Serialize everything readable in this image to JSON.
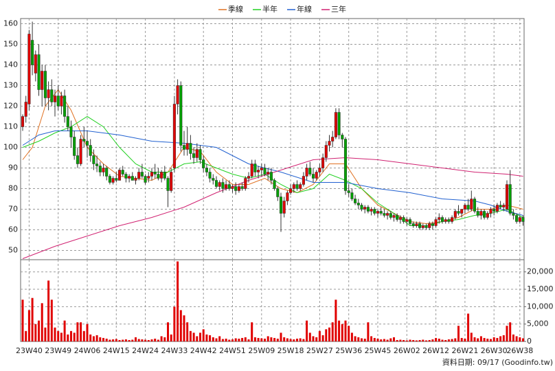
{
  "chart_data": {
    "type": "candlestick",
    "categories": [
      null,
      null,
      "23W40",
      null,
      null,
      null,
      null,
      null,
      null,
      null,
      null,
      "23W49",
      null,
      null,
      null,
      null,
      null,
      null,
      null,
      null,
      "24W06",
      null,
      null,
      null,
      null,
      null,
      null,
      null,
      null,
      "24W15",
      null,
      null,
      null,
      null,
      null,
      null,
      null,
      null,
      "24W24",
      null,
      null,
      null,
      null,
      null,
      null,
      null,
      null,
      "24W33",
      null,
      null,
      null,
      null,
      null,
      null,
      null,
      null,
      "24W42",
      null,
      null,
      null,
      null,
      null,
      null,
      null,
      null,
      "24W51",
      null,
      null,
      null,
      null,
      null,
      null,
      null,
      null,
      "25W09",
      null,
      null,
      null,
      null,
      null,
      null,
      null,
      null,
      "25W18",
      null,
      null,
      null,
      null,
      null,
      null,
      null,
      null,
      "25W27",
      null,
      null,
      null,
      null,
      null,
      null,
      null,
      null,
      "25W36",
      null,
      null,
      null,
      null,
      null,
      null,
      null,
      null,
      "25W45",
      null,
      null,
      null,
      null,
      null,
      null,
      null,
      null,
      "26W02",
      null,
      null,
      null,
      null,
      null,
      null,
      null,
      null,
      "26W12",
      null,
      null,
      null,
      null,
      null,
      null,
      null,
      null,
      "26W21",
      null,
      null,
      null,
      null,
      null,
      null,
      null,
      null,
      "26W30",
      null,
      null,
      null,
      null,
      null,
      null,
      null,
      "26W38",
      null
    ],
    "ohlc": [
      [
        110,
        116,
        108,
        115
      ],
      [
        115,
        125,
        112,
        122
      ],
      [
        121,
        157,
        118,
        155
      ],
      [
        152,
        161,
        135,
        140
      ],
      [
        136,
        147,
        132,
        145
      ],
      [
        145,
        150,
        125,
        128
      ],
      [
        128,
        140,
        120,
        137
      ],
      [
        137,
        140,
        120,
        124
      ],
      [
        124,
        132,
        118,
        128
      ],
      [
        128,
        133,
        120,
        122
      ],
      [
        122,
        128,
        115,
        125
      ],
      [
        125,
        130,
        118,
        120
      ],
      [
        120,
        127,
        116,
        125
      ],
      [
        125,
        128,
        112,
        115
      ],
      [
        115,
        120,
        108,
        110
      ],
      [
        110,
        113,
        100,
        105
      ],
      [
        105,
        108,
        94,
        96
      ],
      [
        96,
        100,
        90,
        92
      ],
      [
        92,
        106,
        91,
        104
      ],
      [
        104,
        110,
        100,
        103
      ],
      [
        103,
        108,
        95,
        101
      ],
      [
        101,
        104,
        93,
        96
      ],
      [
        96,
        99,
        89,
        92
      ],
      [
        92,
        96,
        88,
        91
      ],
      [
        91,
        93,
        86,
        88
      ],
      [
        88,
        92,
        86,
        90
      ],
      [
        90,
        91,
        84,
        86
      ],
      [
        86,
        87,
        82,
        83
      ],
      [
        83,
        86,
        82,
        85
      ],
      [
        85,
        88,
        83,
        84
      ],
      [
        84,
        90,
        84,
        89
      ],
      [
        89,
        91,
        86,
        87
      ],
      [
        87,
        88,
        83,
        85
      ],
      [
        85,
        87,
        83,
        86
      ],
      [
        86,
        88,
        84,
        84
      ],
      [
        84,
        86,
        82,
        85
      ],
      [
        85,
        90,
        84,
        88
      ],
      [
        88,
        92,
        85,
        86
      ],
      [
        86,
        87,
        82,
        83
      ],
      [
        85,
        88,
        83,
        86
      ],
      [
        86,
        90,
        84,
        88
      ],
      [
        88,
        92,
        85,
        87
      ],
      [
        87,
        90,
        84,
        85
      ],
      [
        85,
        89,
        83,
        88
      ],
      [
        88,
        91,
        84,
        85
      ],
      [
        85,
        86,
        71,
        79
      ],
      [
        79,
        90,
        78,
        88
      ],
      [
        90,
        125,
        88,
        121
      ],
      [
        121,
        133,
        116,
        130
      ],
      [
        130,
        132,
        98,
        101
      ],
      [
        101,
        108,
        96,
        99
      ],
      [
        99,
        110,
        96,
        102
      ],
      [
        102,
        106,
        94,
        97
      ],
      [
        97,
        100,
        92,
        95
      ],
      [
        95,
        102,
        93,
        99
      ],
      [
        99,
        101,
        92,
        94
      ],
      [
        94,
        96,
        88,
        90
      ],
      [
        90,
        92,
        86,
        88
      ],
      [
        88,
        90,
        83,
        85
      ],
      [
        85,
        87,
        82,
        84
      ],
      [
        84,
        86,
        80,
        81
      ],
      [
        81,
        84,
        79,
        83
      ],
      [
        83,
        85,
        78,
        80
      ],
      [
        80,
        84,
        79,
        82
      ],
      [
        82,
        84,
        79,
        80
      ],
      [
        80,
        82,
        78,
        81
      ],
      [
        81,
        83,
        77,
        79
      ],
      [
        79,
        82,
        78,
        81
      ],
      [
        81,
        83,
        79,
        80
      ],
      [
        80,
        86,
        79,
        85
      ],
      [
        85,
        88,
        83,
        86
      ],
      [
        86,
        94,
        85,
        92
      ],
      [
        92,
        94,
        86,
        88
      ],
      [
        88,
        91,
        85,
        89
      ],
      [
        89,
        92,
        86,
        90
      ],
      [
        90,
        92,
        86,
        87
      ],
      [
        87,
        90,
        84,
        88
      ],
      [
        88,
        90,
        82,
        84
      ],
      [
        84,
        85,
        79,
        80
      ],
      [
        80,
        81,
        74,
        76
      ],
      [
        76,
        78,
        59,
        68
      ],
      [
        68,
        76,
        66,
        74
      ],
      [
        74,
        79,
        72,
        78
      ],
      [
        78,
        82,
        77,
        80
      ],
      [
        80,
        83,
        78,
        82
      ],
      [
        82,
        84,
        79,
        80
      ],
      [
        80,
        83,
        79,
        82
      ],
      [
        82,
        88,
        81,
        86
      ],
      [
        86,
        92,
        84,
        90
      ],
      [
        90,
        93,
        86,
        87
      ],
      [
        87,
        90,
        83,
        85
      ],
      [
        85,
        89,
        84,
        88
      ],
      [
        88,
        92,
        86,
        90
      ],
      [
        90,
        97,
        88,
        95
      ],
      [
        95,
        103,
        93,
        101
      ],
      [
        101,
        106,
        98,
        103
      ],
      [
        103,
        108,
        100,
        105
      ],
      [
        105,
        119,
        104,
        117
      ],
      [
        117,
        119,
        104,
        106
      ],
      [
        106,
        107,
        100,
        104
      ],
      [
        104,
        105,
        77,
        79
      ],
      [
        79,
        82,
        76,
        78
      ],
      [
        78,
        80,
        74,
        75
      ],
      [
        75,
        77,
        72,
        73
      ],
      [
        73,
        75,
        70,
        72
      ],
      [
        72,
        73,
        69,
        70
      ],
      [
        70,
        72,
        68,
        71
      ],
      [
        71,
        72,
        68,
        69
      ],
      [
        69,
        71,
        67,
        70
      ],
      [
        70,
        71,
        67,
        68
      ],
      [
        68,
        70,
        66,
        69
      ],
      [
        69,
        71,
        67,
        68
      ],
      [
        68,
        70,
        66,
        67
      ],
      [
        67,
        69,
        65,
        68
      ],
      [
        68,
        69,
        65,
        66
      ],
      [
        66,
        68,
        64,
        67
      ],
      [
        67,
        68,
        64,
        65
      ],
      [
        65,
        67,
        63,
        66
      ],
      [
        66,
        67,
        63,
        64
      ],
      [
        64,
        66,
        62,
        65
      ],
      [
        65,
        66,
        62,
        63
      ],
      [
        63,
        64,
        61,
        62
      ],
      [
        62,
        64,
        61,
        63
      ],
      [
        63,
        64,
        60,
        61
      ],
      [
        61,
        63,
        60,
        62
      ],
      [
        62,
        63,
        60,
        61
      ],
      [
        61,
        64,
        60,
        63
      ],
      [
        63,
        64,
        60,
        62
      ],
      [
        62,
        66,
        61,
        65
      ],
      [
        65,
        68,
        63,
        66
      ],
      [
        66,
        67,
        63,
        64
      ],
      [
        64,
        66,
        63,
        65
      ],
      [
        65,
        66,
        63,
        64
      ],
      [
        64,
        67,
        63,
        66
      ],
      [
        66,
        70,
        65,
        69
      ],
      [
        69,
        72,
        67,
        68
      ],
      [
        68,
        70,
        66,
        70
      ],
      [
        70,
        73,
        68,
        72
      ],
      [
        72,
        75,
        69,
        70
      ],
      [
        70,
        79,
        69,
        75
      ],
      [
        75,
        76,
        68,
        69
      ],
      [
        69,
        71,
        66,
        67
      ],
      [
        67,
        70,
        65,
        69
      ],
      [
        69,
        70,
        65,
        66
      ],
      [
        66,
        69,
        65,
        68
      ],
      [
        68,
        71,
        66,
        70
      ],
      [
        70,
        72,
        67,
        69
      ],
      [
        69,
        73,
        68,
        72
      ],
      [
        72,
        74,
        70,
        71
      ],
      [
        71,
        73,
        69,
        72
      ],
      [
        70,
        84,
        69,
        82
      ],
      [
        82,
        89,
        67,
        68
      ],
      [
        68,
        70,
        65,
        67
      ],
      [
        67,
        68,
        63,
        64
      ],
      [
        64,
        67,
        63,
        66
      ],
      [
        66,
        67,
        62,
        64
      ]
    ],
    "up_color": "#e00000",
    "down_color": "#00a000",
    "ylim": [
      45.5,
      162.5
    ],
    "yticks": [
      50,
      60,
      70,
      80,
      90,
      100,
      110,
      120,
      130,
      140,
      150,
      160
    ],
    "grid": true,
    "series": [
      {
        "name": "季線",
        "color": "#e07020",
        "x": [
          0,
          3,
          7,
          11,
          15,
          20,
          25,
          30,
          35,
          40,
          45,
          50,
          55,
          60,
          65,
          70,
          75,
          80,
          85,
          90,
          95,
          100,
          105,
          110,
          115,
          120,
          125,
          130,
          135,
          140,
          145,
          150,
          155
        ],
        "values": [
          94,
          100,
          120,
          128,
          118,
          100,
          92,
          86,
          85,
          84,
          88,
          100,
          98,
          88,
          82,
          82,
          85,
          80,
          78,
          82,
          92,
          92,
          80,
          72,
          68,
          64,
          63,
          64,
          66,
          70,
          70,
          72,
          70
        ]
      },
      {
        "name": "半年",
        "color": "#20d020",
        "x": [
          0,
          5,
          10,
          15,
          20,
          25,
          30,
          35,
          40,
          45,
          50,
          55,
          60,
          65,
          70,
          75,
          80,
          85,
          90,
          95,
          100,
          105,
          110,
          115,
          120,
          125,
          130,
          135,
          140,
          145,
          150,
          155
        ],
        "values": [
          100,
          103,
          107,
          110,
          115,
          110,
          100,
          92,
          88,
          88,
          92,
          93,
          90,
          87,
          85,
          87,
          82,
          78,
          80,
          87,
          84,
          80,
          73,
          68,
          62,
          62,
          64,
          65,
          67,
          68,
          70,
          66
        ]
      },
      {
        "name": "年線",
        "color": "#2060d0",
        "x": [
          0,
          5,
          10,
          20,
          30,
          40,
          50,
          60,
          70,
          80,
          90,
          100,
          110,
          120,
          130,
          140,
          145,
          150,
          155
        ],
        "values": [
          101,
          106,
          108,
          108,
          106,
          103,
          102,
          100,
          92,
          88,
          83,
          83,
          80,
          78,
          75,
          74,
          72,
          69,
          67
        ]
      },
      {
        "name": "三年",
        "color": "#d02070",
        "x": [
          0,
          10,
          20,
          30,
          40,
          50,
          60,
          70,
          80,
          90,
          100,
          110,
          120,
          130,
          140,
          150,
          155
        ],
        "values": [
          46,
          52,
          57,
          62,
          66,
          71,
          78,
          84,
          89,
          94,
          95,
          94,
          92,
          90,
          88,
          87,
          86
        ]
      }
    ],
    "volume": {
      "color": "#e00000",
      "ylim": [
        0,
        23500
      ],
      "yticks": [
        0,
        {
          "value": 5000,
          "label": "5,000"
        },
        {
          "value": 10000,
          "label": "10,000"
        },
        {
          "value": 15000,
          "label": "15,000"
        },
        {
          "value": 20000,
          "label": "20,000"
        }
      ],
      "values": [
        12000,
        3000,
        9000,
        12500,
        5000,
        6000,
        11000,
        4000,
        17500,
        12000,
        4000,
        3000,
        2500,
        6000,
        2000,
        3000,
        2500,
        5500,
        5500,
        3000,
        5000,
        2000,
        1500,
        1800,
        1200,
        1000,
        800,
        500,
        600,
        700,
        400,
        500,
        600,
        400,
        500,
        1200,
        700,
        600,
        500,
        400,
        600,
        800,
        500,
        1500,
        1200,
        5500,
        2000,
        10000,
        23000,
        9000,
        7500,
        5500,
        3000,
        2500,
        1500,
        2500,
        3500,
        2000,
        1800,
        1200,
        900,
        1500,
        700,
        800,
        500,
        600,
        900,
        800,
        1000,
        1200,
        600,
        5500,
        1200,
        1000,
        900,
        800,
        1500,
        1200,
        1000,
        800,
        2500,
        1200,
        900,
        700,
        600,
        800,
        900,
        700,
        6000,
        2500,
        1500,
        1200,
        3000,
        1800,
        3500,
        4000,
        5500,
        12000,
        6000,
        5000,
        6000,
        4500,
        2500,
        1500,
        1200,
        900,
        800,
        5500,
        1500,
        1000,
        800,
        600,
        700,
        500,
        900,
        1200,
        400,
        500,
        400,
        300,
        500,
        400,
        300,
        400,
        500,
        300,
        400,
        600,
        1000,
        800,
        500,
        400,
        600,
        700,
        900,
        4500,
        1000,
        800,
        8000,
        2500,
        1200,
        900,
        1500,
        1000,
        800,
        700,
        1200,
        1000,
        1500,
        1800,
        4500,
        5500,
        2000,
        1500,
        1200,
        900
      ]
    },
    "footer": "資料日期: 09/17 (Goodinfo.tw)"
  }
}
